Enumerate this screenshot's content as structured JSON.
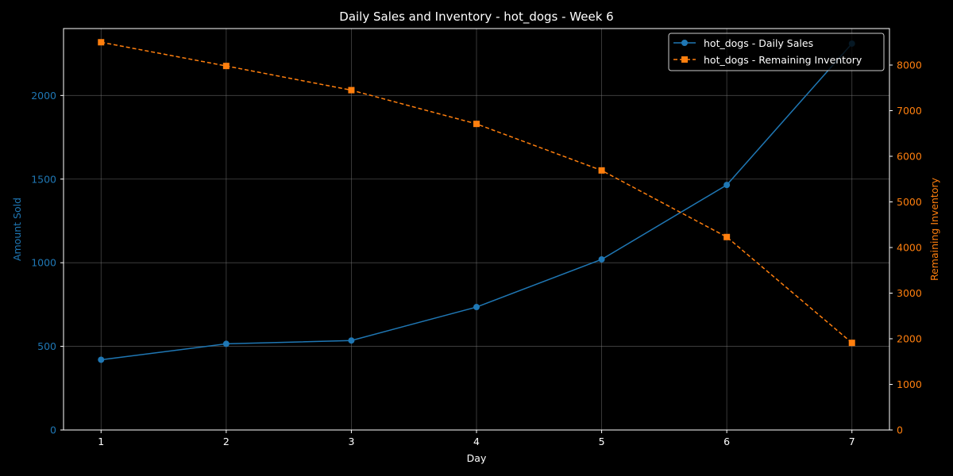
{
  "colors": {
    "background": "#000000",
    "axis": "#ffffff",
    "grid": "#808080",
    "sales": "#1f77b4",
    "inventory": "#ff7f0e",
    "legend_bg": "#000000",
    "legend_border": "#cccccc"
  },
  "chart_data": {
    "type": "line",
    "title": "Daily Sales and Inventory - hot_dogs - Week 6",
    "xlabel": "Day",
    "ylabel_left": "Amount Sold",
    "ylabel_right": "Remaining Inventory",
    "x": [
      1,
      2,
      3,
      4,
      5,
      6,
      7
    ],
    "x_ticks": [
      "1",
      "2",
      "3",
      "4",
      "5",
      "6",
      "7"
    ],
    "xlim": [
      0.7,
      7.3
    ],
    "ylim_left": [
      0,
      2400
    ],
    "ylim_right": [
      0,
      8800
    ],
    "y_ticks_left": [
      "0",
      "500",
      "1000",
      "1500",
      "2000"
    ],
    "y_tick_values_left": [
      0,
      500,
      1000,
      1500,
      2000
    ],
    "y_ticks_right": [
      "0",
      "1000",
      "2000",
      "3000",
      "4000",
      "5000",
      "6000",
      "7000",
      "8000"
    ],
    "y_tick_values_right": [
      0,
      1000,
      2000,
      3000,
      4000,
      5000,
      6000,
      7000,
      8000
    ],
    "grid": true,
    "legend_position": "top-right",
    "series": [
      {
        "name": "hot_dogs - Daily Sales",
        "axis": "left",
        "marker": "circle",
        "line_style": "solid",
        "values": [
          420,
          515,
          535,
          735,
          1020,
          1465,
          2310
        ]
      },
      {
        "name": "hot_dogs - Remaining Inventory",
        "axis": "right",
        "marker": "square",
        "line_style": "dashed",
        "values": [
          8500,
          7980,
          7450,
          6710,
          5690,
          4230,
          1910
        ]
      }
    ]
  }
}
